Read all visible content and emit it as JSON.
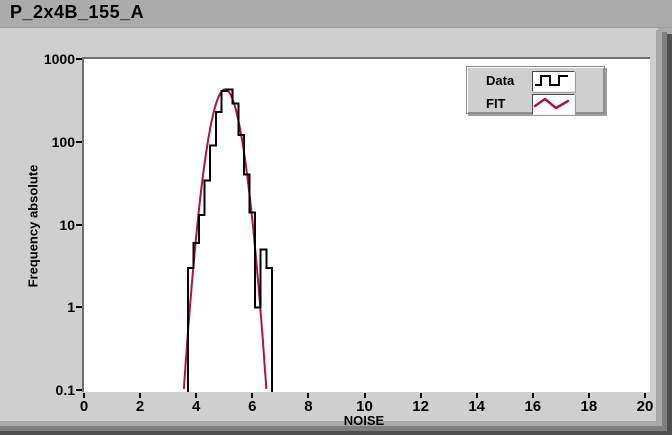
{
  "window": {
    "title": "P_2x4B_155_A"
  },
  "colors": {
    "titlebar_bg": "#ababab",
    "panel_bg": "#cfcfcf",
    "plot_bg": "#ffffff",
    "data_color": "#000000",
    "fit_color": "#b01342",
    "legend_bg": "#cfcfcf"
  },
  "legend": {
    "items": [
      {
        "label": "Data",
        "glyph": "step-line-icon",
        "color": "#000000"
      },
      {
        "label": "FIT",
        "glyph": "zigzag-line-icon",
        "color": "#b01342"
      }
    ]
  },
  "axes": {
    "x": {
      "label": "NOISE",
      "ticks": [
        "0",
        "2",
        "4",
        "6",
        "8",
        "10",
        "12",
        "14",
        "16",
        "18",
        "20"
      ]
    },
    "y": {
      "label": "Frequency absolute",
      "ticks": [
        "1000",
        "100",
        "10",
        "1",
        "0.1"
      ]
    }
  },
  "chart_data": {
    "type": "histogram",
    "title": "P_2x4B_155_A",
    "xlabel": "NOISE",
    "ylabel": "Frequency absolute",
    "x_range": [
      0,
      20
    ],
    "y_range": [
      0.1,
      1000
    ],
    "y_scale": "log",
    "grid": false,
    "legend_position": "top-right",
    "series": [
      {
        "name": "Data",
        "type": "histogram-step-outline",
        "color": "#000000",
        "bin_start": 3.7,
        "bin_width": 0.2,
        "counts": [
          3,
          6,
          13,
          34,
          90,
          230,
          410,
          430,
          290,
          120,
          40,
          14,
          1,
          5,
          3
        ]
      },
      {
        "name": "FIT",
        "type": "gaussian-fit-line",
        "color": "#b01342",
        "amplitude": 430,
        "mean": 5.03,
        "sigma": 0.36
      }
    ]
  }
}
